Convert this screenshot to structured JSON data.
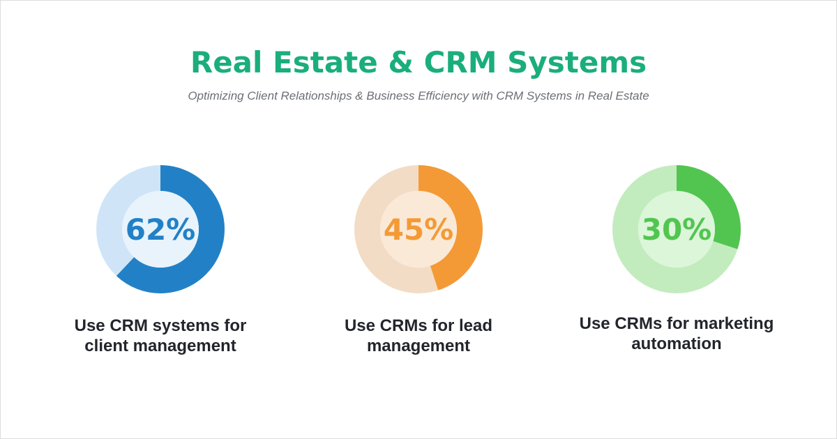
{
  "header": {
    "title": "Real Estate & CRM Systems",
    "subtitle": "Optimizing Client Relationships & Business Efficiency with CRM Systems in Real Estate"
  },
  "chart_data": [
    {
      "type": "donut",
      "values": [
        62
      ],
      "value_labels": [
        "62%"
      ],
      "color": "#2281c6",
      "track_color": "#cfe5f7",
      "center_color": "#e8f3fc",
      "label_lines": [
        "Use CRM systems for",
        "client management"
      ]
    },
    {
      "type": "donut",
      "values": [
        45
      ],
      "value_labels": [
        "45%"
      ],
      "color": "#f39a36",
      "track_color": "#f3dcc5",
      "center_color": "#fbe9d8",
      "label_lines": [
        "Use CRMs for lead",
        "management"
      ]
    },
    {
      "type": "donut",
      "values": [
        30
      ],
      "value_labels": [
        "30%"
      ],
      "color": "#52c550",
      "track_color": "#c2ecbe",
      "center_color": "#dcf6d9",
      "label_lines": [
        "Use CRMs for marketing",
        "automation"
      ]
    }
  ]
}
